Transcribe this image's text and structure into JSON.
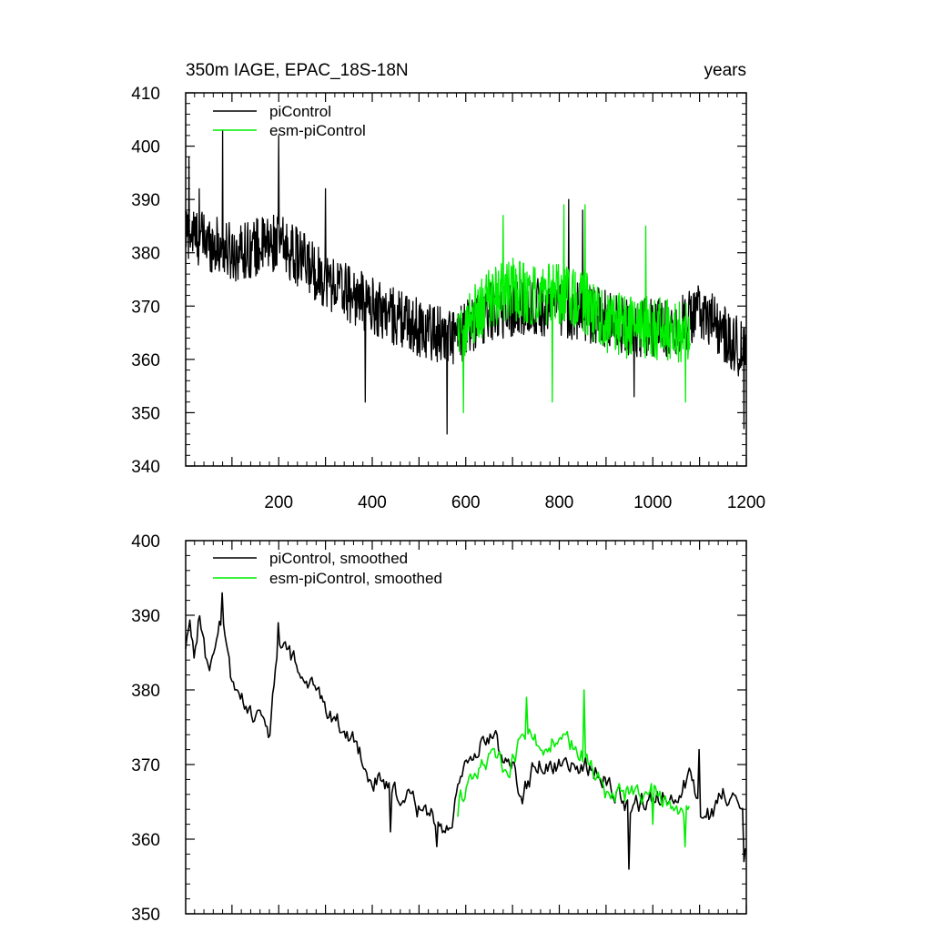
{
  "chart_data": [
    {
      "type": "line",
      "title": "350m IAGE, EPAC_18S-18N",
      "title_right": "years",
      "xlabel": "",
      "ylabel": "",
      "xlim": [
        1,
        1200
      ],
      "ylim": [
        340,
        410
      ],
      "yticks": [
        340,
        350,
        360,
        370,
        380,
        390,
        400,
        410
      ],
      "yticklabels": [
        "340",
        "350",
        "360",
        "370",
        "380",
        "390",
        "400",
        "410"
      ],
      "xticks": [
        200,
        400,
        600,
        800,
        1000,
        1200
      ],
      "xticklabels": [
        "200",
        "400",
        "600",
        "800",
        "1000",
        "1200"
      ],
      "legend_position": "top-left",
      "series": [
        {
          "name": "piControl",
          "color": "#000000",
          "x_start": 1,
          "x_end": 1200,
          "trend": [
            [
              1,
              384
            ],
            [
              100,
              380
            ],
            [
              200,
              382
            ],
            [
              300,
              375
            ],
            [
              400,
              370
            ],
            [
              500,
              366
            ],
            [
              580,
              364
            ],
            [
              650,
              369
            ],
            [
              750,
              370
            ],
            [
              850,
              369
            ],
            [
              950,
              366
            ],
            [
              1050,
              366
            ],
            [
              1100,
              369
            ],
            [
              1150,
              365
            ],
            [
              1200,
              361
            ]
          ],
          "noise_amplitude": 5.5,
          "extremes": [
            [
              8,
              398
            ],
            [
              30,
              392
            ],
            [
              80,
              403
            ],
            [
              200,
              402
            ],
            [
              300,
              392
            ],
            [
              385,
              352
            ],
            [
              560,
              346
            ],
            [
              820,
              390
            ],
            [
              850,
              388
            ],
            [
              960,
              353
            ],
            [
              1195,
              347
            ]
          ]
        },
        {
          "name": "esm-piControl",
          "color": "#00ee00",
          "x_start": 583,
          "x_end": 1080,
          "trend": [
            [
              583,
              365
            ],
            [
              650,
              371
            ],
            [
              700,
              373
            ],
            [
              750,
              372
            ],
            [
              800,
              372
            ],
            [
              850,
              371
            ],
            [
              900,
              367
            ],
            [
              950,
              366
            ],
            [
              1000,
              366
            ],
            [
              1080,
              365
            ]
          ],
          "noise_amplitude": 6,
          "extremes": [
            [
              595,
              350
            ],
            [
              680,
              387
            ],
            [
              785,
              352
            ],
            [
              810,
              389
            ],
            [
              855,
              389
            ],
            [
              985,
              385
            ],
            [
              1070,
              352
            ]
          ]
        }
      ]
    },
    {
      "type": "line",
      "title": "",
      "xlabel": "",
      "ylabel": "",
      "xlim": [
        1,
        1200
      ],
      "ylim": [
        350,
        400
      ],
      "yticks": [
        350,
        360,
        370,
        380,
        390,
        400
      ],
      "yticklabels": [
        "350",
        "360",
        "370",
        "380",
        "390",
        "400"
      ],
      "xticks": [
        200,
        400,
        600,
        800,
        1000,
        1200
      ],
      "legend_position": "top-left",
      "series": [
        {
          "name": "piControl, smoothed",
          "color": "#000000",
          "x_start": 1,
          "x_end": 1200,
          "trend": [
            [
              1,
              385
            ],
            [
              10,
              389
            ],
            [
              20,
              385
            ],
            [
              30,
              390
            ],
            [
              50,
              382
            ],
            [
              80,
              390
            ],
            [
              100,
              380
            ],
            [
              150,
              377
            ],
            [
              180,
              374
            ],
            [
              200,
              387
            ],
            [
              230,
              384
            ],
            [
              260,
              381
            ],
            [
              300,
              378
            ],
            [
              350,
              374
            ],
            [
              380,
              371
            ],
            [
              400,
              368
            ],
            [
              450,
              366
            ],
            [
              480,
              365
            ],
            [
              500,
              364
            ],
            [
              520,
              364
            ],
            [
              560,
              361
            ],
            [
              600,
              369
            ],
            [
              650,
              374
            ],
            [
              700,
              370
            ],
            [
              720,
              366
            ],
            [
              750,
              370
            ],
            [
              800,
              370
            ],
            [
              850,
              370
            ],
            [
              900,
              368
            ],
            [
              950,
              364
            ],
            [
              1000,
              366
            ],
            [
              1050,
              366
            ],
            [
              1080,
              368
            ],
            [
              1110,
              362
            ],
            [
              1150,
              366
            ],
            [
              1190,
              366
            ],
            [
              1200,
              358
            ]
          ],
          "noise_amplitude": 1.6,
          "extremes": [
            [
              80,
              393
            ],
            [
              200,
              389
            ],
            [
              440,
              361
            ],
            [
              540,
              359
            ],
            [
              950,
              356
            ],
            [
              1100,
              372
            ],
            [
              1195,
              357
            ]
          ]
        },
        {
          "name": "esm-piControl, smoothed",
          "color": "#00ee00",
          "x_start": 583,
          "x_end": 1080,
          "trend": [
            [
              583,
              365
            ],
            [
              620,
              368
            ],
            [
              660,
              372
            ],
            [
              690,
              369
            ],
            [
              720,
              374
            ],
            [
              760,
              373
            ],
            [
              800,
              373
            ],
            [
              840,
              372
            ],
            [
              870,
              369
            ],
            [
              900,
              366
            ],
            [
              950,
              366
            ],
            [
              1000,
              366
            ],
            [
              1040,
              365
            ],
            [
              1080,
              364
            ]
          ],
          "noise_amplitude": 1.6,
          "extremes": [
            [
              583,
              363
            ],
            [
              730,
              379
            ],
            [
              855,
              380
            ],
            [
              1000,
              362
            ],
            [
              1070,
              359
            ]
          ]
        }
      ]
    }
  ]
}
